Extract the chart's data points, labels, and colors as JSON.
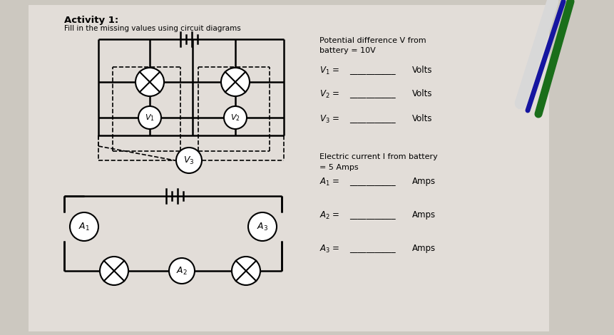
{
  "bg_color": "#ccc8c0",
  "paper_color": "#e2ddd8",
  "title": "Activity 1:",
  "subtitle": "Fill in the missing values using circuit diagrams",
  "right_text": {
    "pd_line1": "Potential difference V from",
    "pd_line2": "battery = 10V",
    "v1": "V₁ = ",
    "v2": "V₂ = ",
    "v3": "V₃ = ",
    "volts": "Volts",
    "ec_line1": "Electric current I from battery",
    "ec_line2": "= 5 Amps",
    "a1": "A₁ = ",
    "a2": "A₂ = ",
    "a3": "A₃ = ",
    "amps": "Amps"
  },
  "pen_green": "#1a6e1a",
  "pen_blue": "#1515a0",
  "pen_white": "#d8d8d8"
}
